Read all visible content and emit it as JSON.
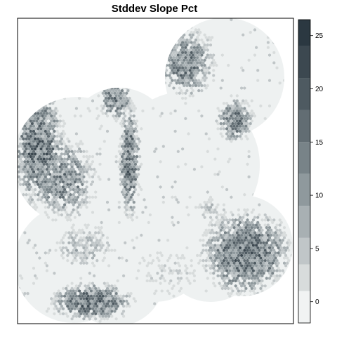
{
  "title": "Stddev Slope Pct",
  "map": {
    "type": "heatmap",
    "cell_shape": "hexagon",
    "legend": {
      "placement": "right",
      "ticks": [
        0,
        5,
        10,
        15,
        20,
        25
      ],
      "min": -2,
      "max": 26.5,
      "breaks": [
        -2,
        1,
        3.5,
        6,
        9,
        12,
        15,
        18,
        21,
        24,
        26.5
      ],
      "colors": [
        "#f1f3f3",
        "#d8dcdc",
        "#c0c6c8",
        "#a8b0b3",
        "#8f999d",
        "#788388",
        "#626d73",
        "#4e5a61",
        "#3c4850",
        "#2b3841"
      ]
    },
    "colors": {
      "background": "#eef1f1",
      "outline": "#000000"
    }
  }
}
